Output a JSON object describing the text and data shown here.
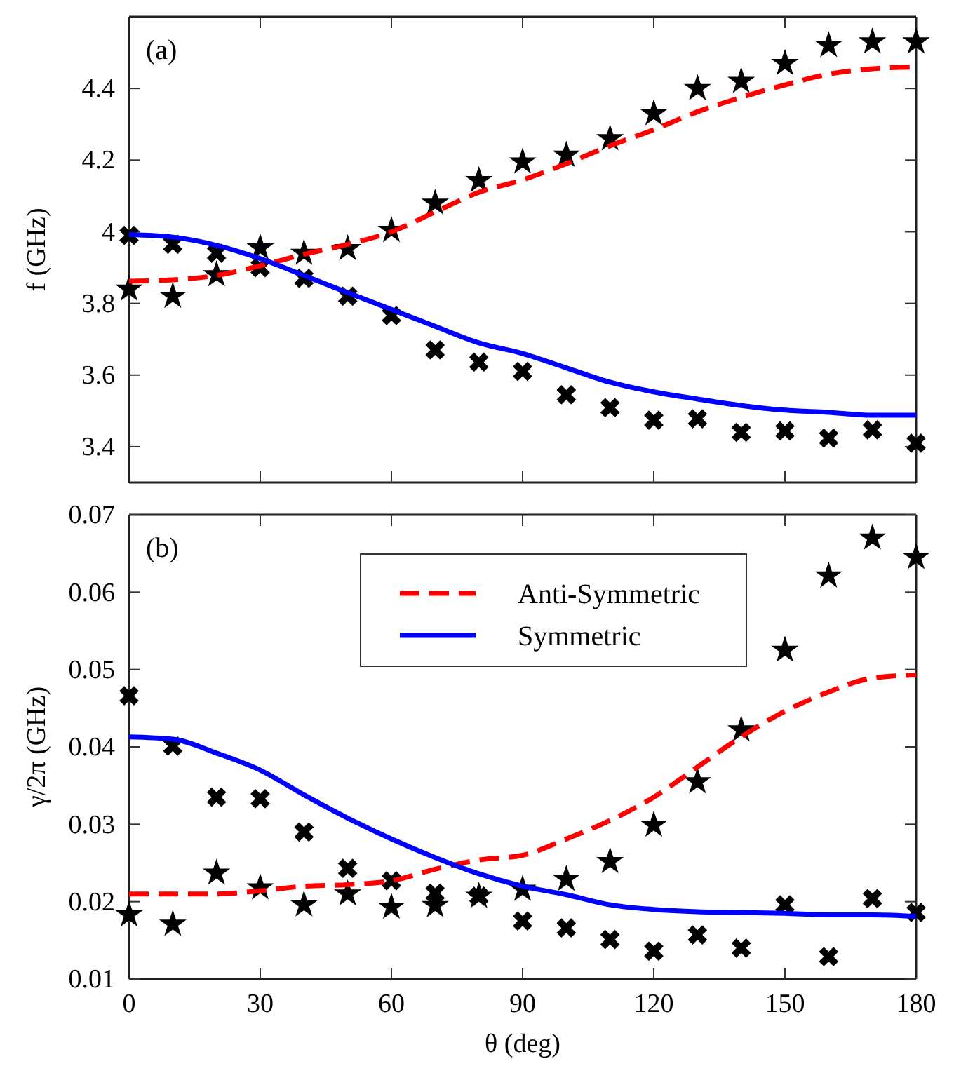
{
  "chart_data": [
    {
      "type": "line",
      "ylabel": "f (GHz)",
      "annotations": [
        "(a)"
      ],
      "x": [
        0,
        10,
        20,
        30,
        40,
        50,
        60,
        70,
        80,
        90,
        100,
        110,
        120,
        130,
        140,
        150,
        160,
        170,
        180
      ],
      "xlim": [
        0,
        180
      ],
      "xticks": [
        0,
        30,
        60,
        90,
        120,
        150,
        180
      ],
      "ylim": [
        3.3,
        4.6
      ],
      "yticks": [
        3.4,
        3.6,
        3.8,
        4,
        4.2,
        4.4
      ],
      "tick_labels": "y",
      "grid": false,
      "legend": false,
      "series": [
        {
          "color": "#ff0000",
          "line_style": "dashed",
          "values": [
            3.862,
            3.866,
            3.878,
            3.905,
            3.937,
            3.965,
            4.0,
            4.055,
            4.11,
            4.145,
            4.19,
            4.24,
            4.285,
            4.335,
            4.375,
            4.41,
            4.44,
            4.455,
            4.46
          ]
        },
        {
          "color": "#0000ff",
          "line_style": "solid",
          "values": [
            3.992,
            3.985,
            3.962,
            3.925,
            3.878,
            3.83,
            3.783,
            3.736,
            3.69,
            3.66,
            3.62,
            3.58,
            3.553,
            3.533,
            3.515,
            3.502,
            3.496,
            3.488,
            3.488
          ]
        },
        {
          "type": "scatter",
          "color": "#000000",
          "marker": "star",
          "values": [
            3.84,
            3.82,
            3.88,
            3.955,
            3.94,
            3.953,
            4.004,
            4.08,
            4.143,
            4.195,
            4.214,
            4.26,
            4.33,
            4.4,
            4.42,
            4.47,
            4.52,
            4.53,
            4.53
          ]
        },
        {
          "type": "scatter",
          "color": "#000000",
          "marker": "cross",
          "values": [
            3.99,
            3.965,
            3.94,
            3.9,
            3.87,
            3.82,
            3.766,
            3.67,
            3.636,
            3.61,
            3.545,
            3.509,
            3.474,
            3.478,
            3.44,
            3.444,
            3.424,
            3.447,
            3.41
          ]
        }
      ]
    },
    {
      "type": "line",
      "xlabel": "θ (deg)",
      "ylabel": "γ/2π (GHz)",
      "annotations": [
        "(b)"
      ],
      "x": [
        0,
        10,
        20,
        30,
        40,
        50,
        60,
        70,
        80,
        90,
        100,
        110,
        120,
        130,
        140,
        150,
        160,
        170,
        180
      ],
      "xlim": [
        0,
        180
      ],
      "xticks": [
        0,
        30,
        60,
        90,
        120,
        150,
        180
      ],
      "ylim": [
        0.01,
        0.07
      ],
      "yticks": [
        0.01,
        0.02,
        0.03,
        0.04,
        0.05,
        0.06,
        0.07
      ],
      "grid": false,
      "legend": "top",
      "series": [
        {
          "name": "Anti-Symmetric",
          "color": "#ff0000",
          "line_style": "dashed",
          "values": [
            0.021,
            0.021,
            0.021,
            0.0214,
            0.022,
            0.0222,
            0.0227,
            0.0242,
            0.0254,
            0.026,
            0.0281,
            0.0305,
            0.0335,
            0.0374,
            0.0413,
            0.0446,
            0.0471,
            0.0489,
            0.0493
          ]
        },
        {
          "name": "Symmetric",
          "color": "#0000ff",
          "line_style": "solid",
          "values": [
            0.0413,
            0.041,
            0.0392,
            0.037,
            0.0338,
            0.0308,
            0.0281,
            0.0257,
            0.0236,
            0.022,
            0.0209,
            0.0196,
            0.019,
            0.0187,
            0.0186,
            0.0185,
            0.0183,
            0.0183,
            0.0181
          ]
        },
        {
          "type": "scatter",
          "color": "#000000",
          "marker": "star",
          "values": [
            0.0183,
            0.0171,
            0.0237,
            0.0218,
            0.0196,
            0.021,
            0.0193,
            0.0195,
            0.0207,
            0.0216,
            0.0229,
            0.0252,
            0.0299,
            0.0355,
            0.0422,
            0.0525,
            0.0621,
            0.067,
            0.0645
          ]
        },
        {
          "type": "scatter",
          "color": "#000000",
          "marker": "cross",
          "values": [
            0.0466,
            0.0401,
            0.0335,
            0.0333,
            0.029,
            0.0243,
            0.0227,
            0.0211,
            0.0207,
            0.0175,
            0.0166,
            0.0151,
            0.0136,
            0.0157,
            0.014,
            0.0196,
            0.0129,
            0.0204,
            0.0186
          ]
        }
      ]
    }
  ]
}
